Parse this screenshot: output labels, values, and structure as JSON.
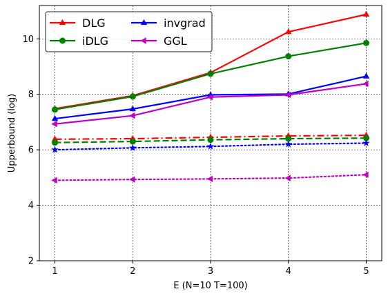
{
  "chart_data": {
    "type": "line",
    "title": "",
    "xlabel": "E (N=10 T=100)",
    "ylabel": "Upperbound (log)",
    "x": [
      1,
      2,
      3,
      4,
      5
    ],
    "xticks": [
      "1",
      "2",
      "3",
      "4",
      "5"
    ],
    "yticks": [
      "2",
      "4",
      "6",
      "8",
      "10"
    ],
    "xlim": [
      0.8,
      5.2
    ],
    "ylim": [
      2,
      11.2
    ],
    "grid": true,
    "legend": {
      "placement": "top-left",
      "columns": 2,
      "entries": [
        "DLG",
        "iDLG",
        "invgrad",
        "GGL"
      ]
    },
    "series": [
      {
        "name": "DLG",
        "color": "#ff0000",
        "marker": "triangle-up",
        "style": "solid",
        "values": [
          7.48,
          7.95,
          8.78,
          10.25,
          10.88
        ]
      },
      {
        "name": "iDLG",
        "color": "#008000",
        "marker": "circle",
        "style": "solid",
        "values": [
          7.45,
          7.92,
          8.74,
          9.37,
          9.85
        ]
      },
      {
        "name": "invgrad",
        "color": "#0000ff",
        "marker": "triangle-up",
        "style": "solid",
        "values": [
          7.12,
          7.47,
          7.98,
          8.01,
          8.65
        ]
      },
      {
        "name": "GGL",
        "color": "#bf00bf",
        "marker": "triangle-left",
        "style": "solid",
        "values": [
          6.93,
          7.23,
          7.9,
          7.98,
          8.38
        ]
      },
      {
        "name": "",
        "color": "#ff0000",
        "marker": "triangle-up",
        "style": "dashdot",
        "values": [
          6.38,
          6.4,
          6.45,
          6.5,
          6.52
        ]
      },
      {
        "name": "",
        "color": "#008000",
        "marker": "circle",
        "style": "dashed",
        "values": [
          6.26,
          6.3,
          6.36,
          6.4,
          6.42
        ]
      },
      {
        "name": "",
        "color": "#0000ff",
        "marker": "star",
        "style": "dotted",
        "values": [
          6.0,
          6.07,
          6.12,
          6.2,
          6.24
        ]
      },
      {
        "name": "",
        "color": "#bf00bf",
        "marker": "triangle-left",
        "style": "dotted",
        "values": [
          4.9,
          4.93,
          4.95,
          4.98,
          5.1
        ]
      }
    ]
  }
}
